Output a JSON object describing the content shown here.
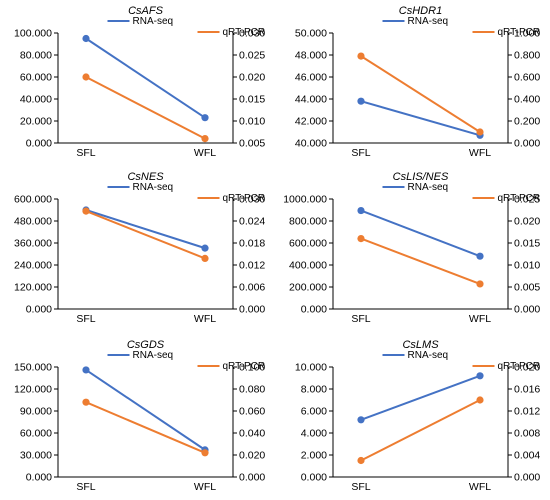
{
  "chart_data": [
    {
      "type": "line",
      "title": "CsAFS",
      "categories": [
        "SFL",
        "WFL"
      ],
      "series": [
        {
          "name": "RNA-seq",
          "axis": "left",
          "color": "#4472C4",
          "values": [
            95.0,
            23.0
          ]
        },
        {
          "name": "qRT-PCR",
          "axis": "right",
          "color": "#ED7D31",
          "values": [
            0.02,
            0.006
          ]
        }
      ],
      "y_left": {
        "range": [
          0,
          100
        ],
        "ticks": [
          "0.000",
          "20.000",
          "40.000",
          "60.000",
          "80.000",
          "100.000"
        ]
      },
      "y_right": {
        "range": [
          0.005,
          0.03
        ],
        "ticks": [
          "0.005",
          "0.010",
          "0.015",
          "0.020",
          "0.025",
          "0.030"
        ]
      },
      "legend": "top-right"
    },
    {
      "type": "line",
      "title": "CsHDR1",
      "categories": [
        "SFL",
        "WFL"
      ],
      "series": [
        {
          "name": "RNA-seq",
          "axis": "left",
          "color": "#4472C4",
          "values": [
            43.8,
            40.7
          ]
        },
        {
          "name": "qRT-PCR",
          "axis": "right",
          "color": "#ED7D31",
          "values": [
            0.79,
            0.1
          ]
        }
      ],
      "y_left": {
        "range": [
          40,
          50
        ],
        "ticks": [
          "40.000",
          "42.000",
          "44.000",
          "46.000",
          "48.000",
          "50.000"
        ]
      },
      "y_right": {
        "range": [
          0,
          1
        ],
        "ticks": [
          "0.000",
          "0.200",
          "0.400",
          "0.600",
          "0.800",
          "1.000"
        ]
      },
      "legend": "top-right"
    },
    {
      "type": "line",
      "title": "CsNES",
      "categories": [
        "SFL",
        "WFL"
      ],
      "series": [
        {
          "name": "RNA-seq",
          "axis": "left",
          "color": "#4472C4",
          "values": [
            540,
            332
          ]
        },
        {
          "name": "qRT-PCR",
          "axis": "right",
          "color": "#ED7D31",
          "values": [
            0.0267,
            0.0138
          ]
        }
      ],
      "y_left": {
        "range": [
          0,
          600
        ],
        "ticks": [
          "0.000",
          "120.000",
          "240.000",
          "360.000",
          "480.000",
          "600.000"
        ]
      },
      "y_right": {
        "range": [
          0,
          0.03
        ],
        "ticks": [
          "0.000",
          "0.006",
          "0.012",
          "0.018",
          "0.024",
          "0.030"
        ]
      },
      "legend": "top-right"
    },
    {
      "type": "line",
      "title": "CsLIS/NES",
      "categories": [
        "SFL",
        "WFL"
      ],
      "series": [
        {
          "name": "RNA-seq",
          "axis": "left",
          "color": "#4472C4",
          "values": [
            895,
            480
          ]
        },
        {
          "name": "qRT-PCR",
          "axis": "right",
          "color": "#ED7D31",
          "values": [
            0.016,
            0.0057
          ]
        }
      ],
      "y_left": {
        "range": [
          0,
          1000
        ],
        "ticks": [
          "0.000",
          "200.000",
          "400.000",
          "600.000",
          "800.000",
          "1000.000"
        ]
      },
      "y_right": {
        "range": [
          0,
          0.025
        ],
        "ticks": [
          "0.000",
          "0.005",
          "0.010",
          "0.015",
          "0.020",
          "0.025"
        ]
      },
      "legend": "top-right"
    },
    {
      "type": "line",
      "title": "CsGDS",
      "categories": [
        "SFL",
        "WFL"
      ],
      "series": [
        {
          "name": "RNA-seq",
          "axis": "left",
          "color": "#4472C4",
          "values": [
            146,
            37
          ]
        },
        {
          "name": "qRT-PCR",
          "axis": "right",
          "color": "#ED7D31",
          "values": [
            0.068,
            0.022
          ]
        }
      ],
      "y_left": {
        "range": [
          0,
          150
        ],
        "ticks": [
          "0.000",
          "30.000",
          "60.000",
          "90.000",
          "120.000",
          "150.000"
        ]
      },
      "y_right": {
        "range": [
          0,
          0.1
        ],
        "ticks": [
          "0.000",
          "0.020",
          "0.040",
          "0.060",
          "0.080",
          "0.100"
        ]
      },
      "legend": "top-right"
    },
    {
      "type": "line",
      "title": "CsLMS",
      "categories": [
        "SFL",
        "WFL"
      ],
      "series": [
        {
          "name": "RNA-seq",
          "axis": "left",
          "color": "#4472C4",
          "values": [
            5.2,
            9.2
          ]
        },
        {
          "name": "qRT-PCR",
          "axis": "right",
          "color": "#ED7D31",
          "values": [
            0.003,
            0.014
          ]
        }
      ],
      "y_left": {
        "range": [
          0,
          10
        ],
        "ticks": [
          "0.000",
          "2.000",
          "4.000",
          "6.000",
          "8.000",
          "10.000"
        ]
      },
      "y_right": {
        "range": [
          0,
          0.02
        ],
        "ticks": [
          "0.000",
          "0.004",
          "0.008",
          "0.012",
          "0.016",
          "0.020"
        ]
      },
      "legend": "top-right"
    }
  ]
}
